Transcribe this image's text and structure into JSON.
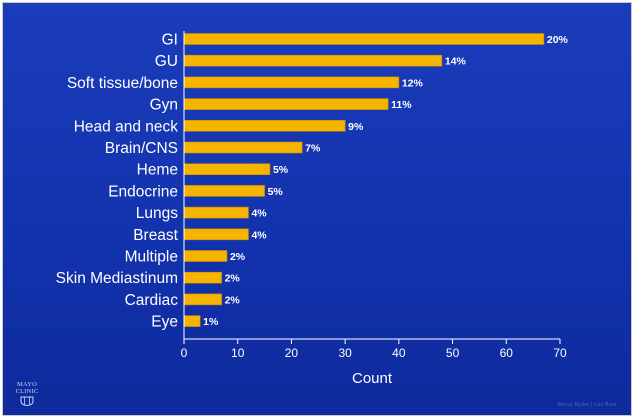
{
  "chart_data": {
    "type": "bar",
    "orientation": "horizontal",
    "categories": [
      "GI",
      "GU",
      "Soft tissue/bone",
      "Gyn",
      "Head and neck",
      "Brain/CNS",
      "Heme",
      "Endocrine",
      "Lungs",
      "Breast",
      "Multiple",
      "Skin Mediastinum",
      "Cardiac",
      "Eye"
    ],
    "values": [
      67,
      48,
      40,
      38,
      30,
      22,
      16,
      15,
      12,
      12,
      8,
      7,
      7,
      3
    ],
    "data_labels": [
      "20%",
      "14%",
      "12%",
      "11%",
      "9%",
      "7%",
      "5%",
      "5%",
      "4%",
      "4%",
      "2%",
      "2%",
      "2%",
      "1%"
    ],
    "xlabel": "Count",
    "ylabel": "",
    "xlim": [
      0,
      70
    ],
    "xticks": [
      0,
      10,
      20,
      30,
      40,
      50,
      60,
      70
    ],
    "grid": false,
    "legend": "none",
    "colors": {
      "background": "#1332ae",
      "bar": "#f5b400",
      "bar_edge": "#c98a00",
      "axis": "#ffffff",
      "text": "#ffffff"
    }
  },
  "branding": {
    "logo_line1": "MAYO",
    "logo_line2": "CLINIC",
    "footer_note": "Bessy Ryder | Leo Baer"
  }
}
